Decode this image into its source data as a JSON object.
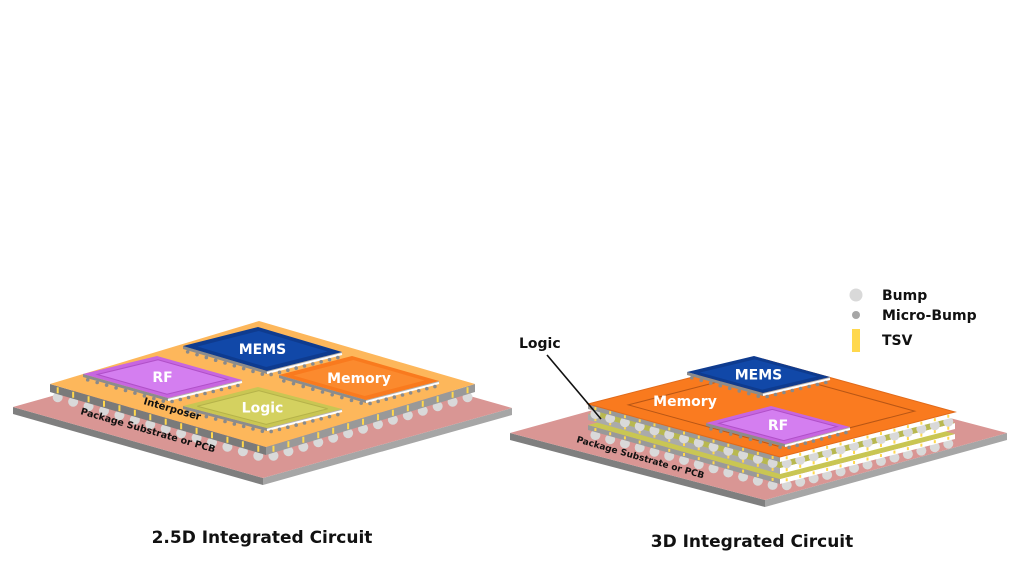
{
  "left_diagram": {
    "title": "2.5D Integrated Circuit",
    "chips": {
      "mems": "MEMS",
      "rf": "RF",
      "memory": "Memory",
      "logic": "Logic"
    },
    "interposer_label": "Interposer",
    "substrate_label": "Package Substrate or PCB"
  },
  "right_diagram": {
    "title": "3D Integrated Circuit",
    "chips": {
      "mems": "MEMS",
      "memory": "Memory",
      "rf": "RF"
    },
    "logic_callout": "Logic",
    "substrate_label": "Package Substrate or PCB"
  },
  "legend": {
    "items": [
      {
        "label": "Bump",
        "symbol": "large-gray-circle",
        "color": "#d9d9d9"
      },
      {
        "label": "Micro-Bump",
        "symbol": "small-gray-circle",
        "color": "#a6a6a6"
      },
      {
        "label": "TSV",
        "symbol": "yellow-bar",
        "color": "#ffd84d"
      }
    ]
  },
  "colors": {
    "substrate": "#d99694",
    "interposer": "#fdb75b",
    "mems": "#0e3b8f",
    "rf": "#c766e0",
    "memory": "#f97a1e",
    "logic": "#c9c653",
    "side": "#8c8c8c"
  }
}
